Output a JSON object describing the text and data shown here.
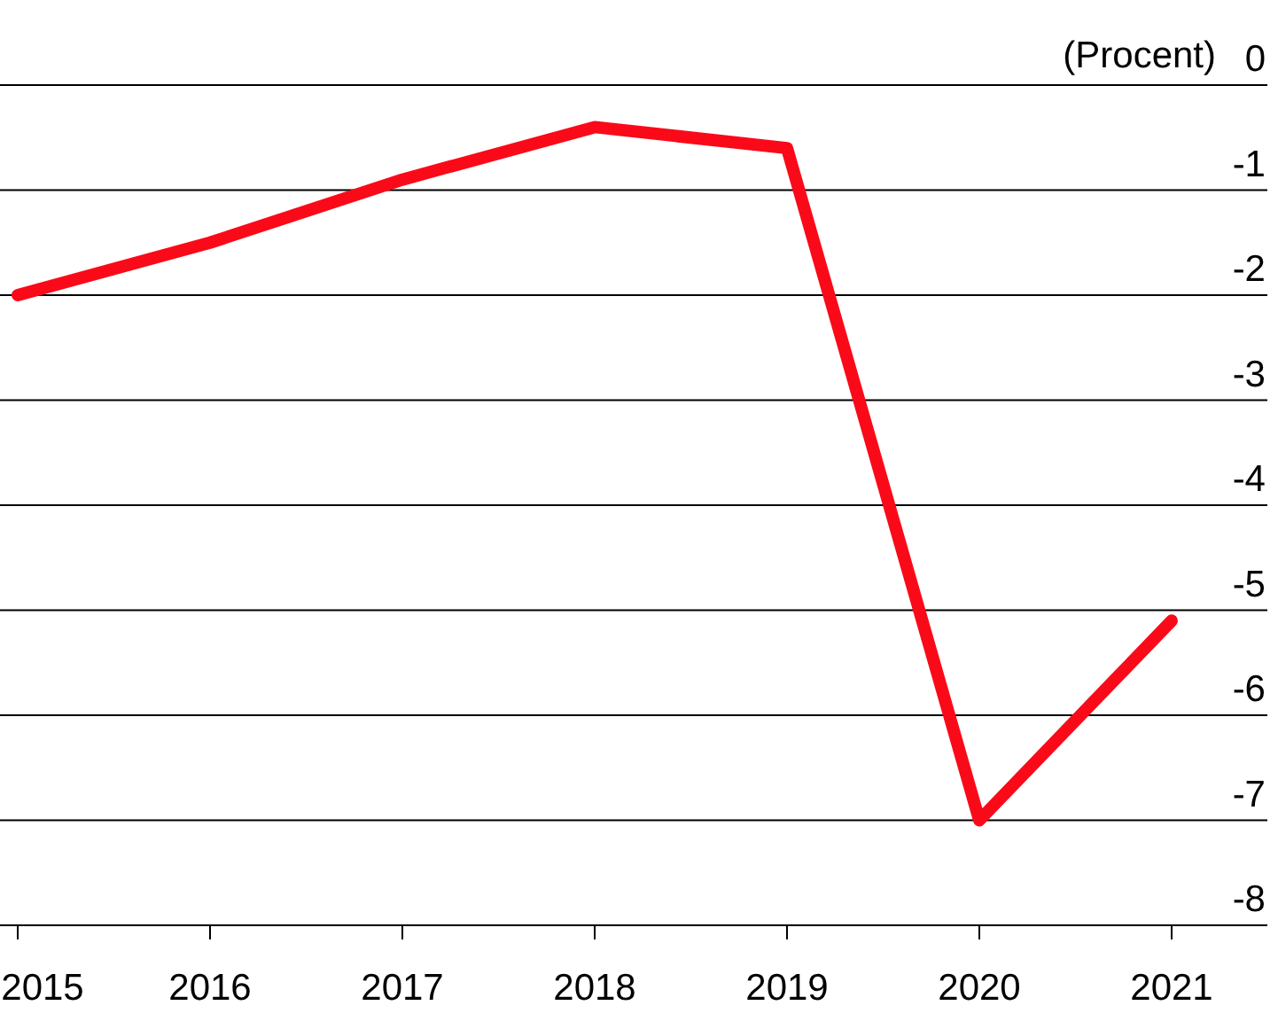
{
  "chart_data": {
    "type": "line",
    "ylabel": "(Procent)",
    "categories": [
      "2015",
      "2016",
      "2017",
      "2018",
      "2019",
      "2020",
      "2021"
    ],
    "series": [
      {
        "color": "#fa0a19",
        "values": [
          -2.0,
          -1.5,
          -0.9,
          -0.4,
          -0.6,
          -7.0,
          -5.1
        ]
      }
    ],
    "ylim": [
      -8,
      0
    ],
    "yticks": [
      0,
      -1,
      -2,
      -3,
      -4,
      -5,
      -6,
      -7,
      -8
    ],
    "grid": "y",
    "marker": "none",
    "line_style": "solid"
  }
}
